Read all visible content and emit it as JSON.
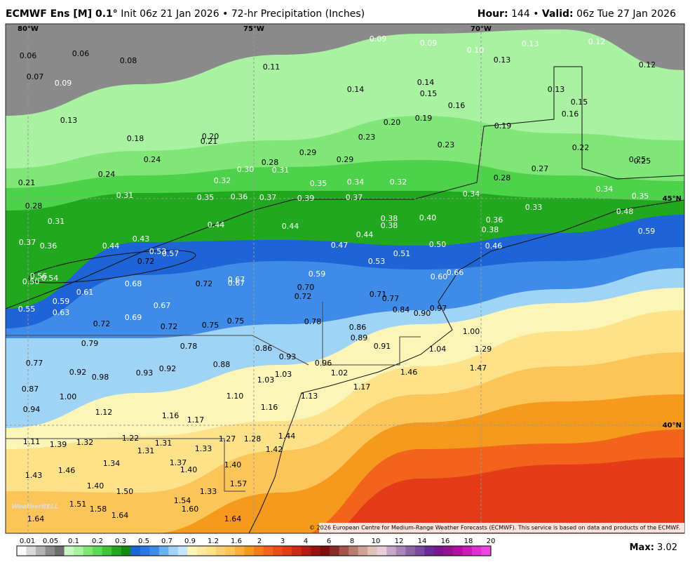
{
  "header": {
    "model": "ECMWF Ens [M] 0.1°",
    "info": "Init 06z 21 Jan 2026 • 72-hr Precipitation (Inches)",
    "hour_label": "Hour:",
    "hour": "144 •",
    "valid_label": "Valid:",
    "valid": "06z Tue 27 Jan 2026"
  },
  "grid_labels": [
    "80°W",
    "75°W",
    "70°W",
    "45°N",
    "40°N"
  ],
  "values": [
    "0.06",
    "0.06",
    "0.08",
    "0.07",
    "0.09",
    "0.11",
    "0.09",
    "0.09",
    "0.10",
    "0.13",
    "0.12",
    "0.13",
    "0.12",
    "0.14",
    "0.14",
    "0.15",
    "0.13",
    "0.15",
    "0.16",
    "0.16",
    "0.13",
    "0.20",
    "0.19",
    "0.19",
    "0.18",
    "0.20",
    "0.21",
    "0.23",
    "0.23",
    "0.22",
    "0.24",
    "0.29",
    "0.29",
    "0.28",
    "0.25",
    "0.25",
    "0.27",
    "0.24",
    "0.30",
    "0.31",
    "0.28",
    "0.21",
    "0.32",
    "0.35",
    "0.34",
    "0.32",
    "0.31",
    "0.35",
    "0.36",
    "0.37",
    "0.39",
    "0.37",
    "0.34",
    "0.34",
    "0.35",
    "0.33",
    "0.28",
    "0.31",
    "0.48",
    "0.44",
    "0.44",
    "0.38",
    "0.38",
    "0.40",
    "0.36",
    "0.38",
    "0.44",
    "0.59",
    "0.37",
    "0.36",
    "0.43",
    "0.44",
    "0.47",
    "0.50",
    "0.46",
    "0.53",
    "0.57",
    "0.51",
    "0.72",
    "0.53",
    "0.56",
    "0.54",
    "0.50",
    "0.59",
    "0.66",
    "0.60",
    "0.68",
    "0.72",
    "0.67",
    "0.67",
    "0.70",
    "0.61",
    "0.72",
    "0.71",
    "0.77",
    "0.59",
    "0.67",
    "0.84",
    "0.90",
    "0.97",
    "0.55",
    "0.63",
    "0.69",
    "0.78",
    "0.72",
    "0.72",
    "0.75",
    "0.75",
    "0.86",
    "1.00",
    "0.89",
    "0.79",
    "0.78",
    "0.86",
    "0.91",
    "1.04",
    "1.29",
    "0.93",
    "0.77",
    "0.88",
    "0.96",
    "0.92",
    "0.93",
    "0.92",
    "1.02",
    "1.46",
    "1.47",
    "0.98",
    "1.03",
    "1.03",
    "0.87",
    "1.17",
    "1.00",
    "1.10",
    "1.13",
    "1.16",
    "0.94",
    "1.12",
    "1.16",
    "1.17",
    "1.11",
    "1.39",
    "1.32",
    "1.22",
    "1.31",
    "1.44",
    "1.27",
    "1.28",
    "1.31",
    "1.33",
    "1.42",
    "1.34",
    "1.37",
    "1.40",
    "1.40",
    "1.46",
    "1.43",
    "1.57",
    "1.40",
    "1.50",
    "1.33",
    "1.51",
    "1.54",
    "1.58",
    "1.60",
    "1.64",
    "1.64",
    "1.64"
  ],
  "copyright": "© 2026 European Centre for Medium-Range Weather Forecasts (ECMWF). This service is based on data and products of the ECMWF.",
  "logo": "WeatherBELL",
  "colorbar": {
    "ticks": [
      "0.01",
      "0.05",
      "0.1",
      "0.2",
      "0.3",
      "0.5",
      "0.7",
      "0.9",
      "1.2",
      "1.6",
      "2",
      "3",
      "4",
      "6",
      "8",
      "10",
      "12",
      "14",
      "16",
      "18",
      "20"
    ]
  },
  "max": {
    "label": "Max:",
    "value": "3.02"
  }
}
